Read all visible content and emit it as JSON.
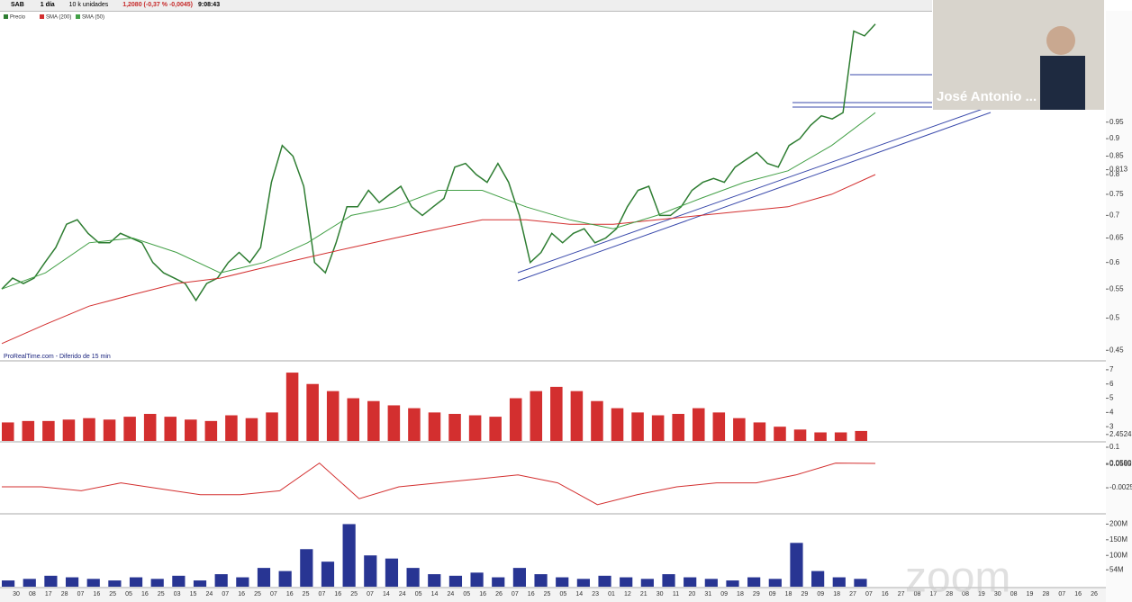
{
  "toolbar": {
    "symbol": "SAB",
    "period": "1 día",
    "units": "10 k unidades",
    "quote": "1,2080 (-0,37 % -0,0045)",
    "time": "9:08:43"
  },
  "source": "ProRealTime.com - Diferido de 15 min",
  "video": {
    "name": "José Antonio ...",
    "watermark": "zoom"
  },
  "chart_data": [
    {
      "type": "line",
      "log_scale": true,
      "ylim": [
        0.436,
        1.364
      ],
      "yticks": [
        0.45,
        0.5,
        0.55,
        0.6,
        0.65,
        0.7,
        0.75,
        0.8,
        {
          "value": 0.813,
          "label": "0.813"
        },
        0.85,
        0.9,
        0.95
      ],
      "legend": "top-left",
      "series": [
        {
          "name": "Precio",
          "color": "#2e7d32",
          "values": [
            0.55,
            0.57,
            0.56,
            0.57,
            0.6,
            0.63,
            0.68,
            0.69,
            0.66,
            0.64,
            0.64,
            0.66,
            0.65,
            0.64,
            0.6,
            0.58,
            0.57,
            0.56,
            0.53,
            0.56,
            0.57,
            0.6,
            0.62,
            0.6,
            0.63,
            0.78,
            0.88,
            0.85,
            0.77,
            0.6,
            0.58,
            0.64,
            0.72,
            0.72,
            0.76,
            0.73,
            0.75,
            0.77,
            0.72,
            0.7,
            0.72,
            0.74,
            0.82,
            0.83,
            0.8,
            0.78,
            0.83,
            0.78,
            0.7,
            0.6,
            0.62,
            0.66,
            0.64,
            0.66,
            0.67,
            0.64,
            0.65,
            0.67,
            0.72,
            0.76,
            0.77,
            0.7,
            0.7,
            0.72,
            0.76,
            0.78,
            0.79,
            0.78,
            0.82,
            0.84,
            0.86,
            0.83,
            0.82,
            0.88,
            0.9,
            0.94,
            0.97,
            0.96,
            0.98,
            1.28,
            1.26,
            1.31
          ]
        },
        {
          "name": "SMA (200)",
          "color": "#d32f2f",
          "values": [
            0.46,
            0.49,
            0.52,
            0.54,
            0.56,
            0.57,
            0.59,
            0.61,
            0.63,
            0.65,
            0.67,
            0.69,
            0.69,
            0.68,
            0.68,
            0.69,
            0.7,
            0.71,
            0.72,
            0.75,
            0.8
          ]
        },
        {
          "name": "SMA (50)",
          "color": "#43a047",
          "values": [
            0.55,
            0.58,
            0.64,
            0.65,
            0.62,
            0.58,
            0.6,
            0.64,
            0.7,
            0.72,
            0.76,
            0.76,
            0.72,
            0.69,
            0.67,
            0.7,
            0.74,
            0.78,
            0.81,
            0.88,
            0.98
          ]
        }
      ]
    },
    {
      "type": "bar",
      "color": "#d32f2f",
      "ylim": [
        2,
        7.5
      ],
      "yticks": [
        {
          "value": 2.4524,
          "label": "2.4524"
        },
        3,
        4,
        5,
        6,
        7
      ],
      "values": [
        3.3,
        3.4,
        3.4,
        3.5,
        3.6,
        3.5,
        3.7,
        3.9,
        3.7,
        3.5,
        3.4,
        3.8,
        3.6,
        4,
        6.8,
        6,
        5.5,
        5,
        4.8,
        4.5,
        4.3,
        4,
        3.9,
        3.8,
        3.7,
        5,
        5.5,
        5.8,
        5.5,
        4.8,
        4.3,
        4,
        3.8,
        3.9,
        4.3,
        4,
        3.6,
        3.3,
        3,
        2.8,
        2.6,
        2.6,
        2.7
      ]
    },
    {
      "type": "line",
      "ylim": [
        -0.066,
        0.1114
      ],
      "yticks": [
        {
          "value": -0.0025,
          "label": "-0.0025"
        },
        {
          "value": 0.0565,
          "label": "0.0565"
        },
        {
          "value": 0.059,
          "label": "0.0590"
        },
        0.1
      ],
      "series": [
        {
          "color": "#d32f2f",
          "values": [
            0,
            0,
            -0.01,
            0.01,
            -0.005,
            -0.02,
            -0.02,
            -0.01,
            0.06,
            -0.03,
            0,
            0.01,
            0.02,
            0.03,
            0.01,
            -0.045,
            -0.02,
            0,
            0.01,
            0.01,
            0.03,
            0.06,
            0.059
          ]
        }
      ]
    },
    {
      "type": "bar",
      "color": "#283593",
      "ylim": [
        0,
        230000000
      ],
      "yticks": [
        {
          "value": 54000000,
          "label": "54M"
        },
        {
          "value": 100000000,
          "label": "100M"
        },
        {
          "value": 150000000,
          "label": "150M"
        },
        {
          "value": 200000000,
          "label": "200M"
        }
      ],
      "values": [
        20000000,
        25000000,
        35000000,
        30000000,
        25000000,
        20000000,
        30000000,
        25000000,
        35000000,
        20000000,
        40000000,
        30000000,
        60000000,
        50000000,
        120000000,
        80000000,
        200000000,
        100000000,
        90000000,
        60000000,
        40000000,
        35000000,
        45000000,
        30000000,
        60000000,
        40000000,
        30000000,
        25000000,
        35000000,
        30000000,
        25000000,
        40000000,
        30000000,
        25000000,
        20000000,
        30000000,
        25000000,
        140000000,
        50000000,
        30000000,
        25000000
      ],
      "date_labels": [
        "30",
        "08",
        "17",
        "28",
        "07",
        "16",
        "25",
        "05",
        "16",
        "25",
        "03",
        "15",
        "24",
        "07",
        "16",
        "25",
        "07",
        "16",
        "25",
        "07",
        "16",
        "25",
        "07",
        "14",
        "24",
        "05",
        "14",
        "24",
        "05",
        "16",
        "26",
        "07",
        "16",
        "25",
        "05",
        "14",
        "23",
        "01",
        "12",
        "21",
        "30",
        "11",
        "20",
        "31",
        "09",
        "18",
        "29",
        "09",
        "18",
        "29",
        "09",
        "18",
        "27",
        "07",
        "16",
        "27",
        "08",
        "17",
        "28",
        "08",
        "19",
        "30",
        "08",
        "19",
        "28",
        "07",
        "16",
        "26"
      ]
    }
  ]
}
